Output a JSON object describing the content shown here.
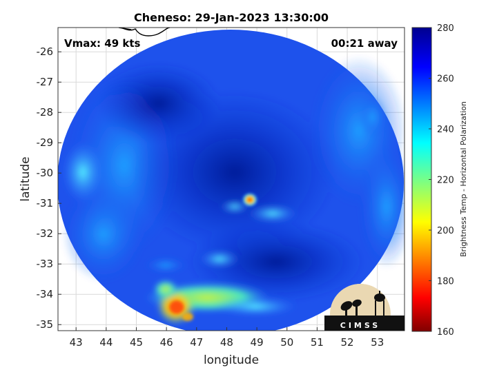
{
  "title": "Cheneso: 29-Jan-2023 13:30:00",
  "vmax_label": "Vmax: 49 kts",
  "time_offset_label": "00:21 away",
  "xlabel": "longitude",
  "ylabel": "latitude",
  "x_ticks": [
    "43",
    "44",
    "45",
    "46",
    "47",
    "48",
    "49",
    "50",
    "51",
    "52",
    "53"
  ],
  "y_ticks": [
    "-26",
    "-27",
    "-28",
    "-29",
    "-30",
    "-31",
    "-32",
    "-33",
    "-34",
    "-35"
  ],
  "colorbar": {
    "label": "Brightness Temp - Horizontal Polarization",
    "ticks": [
      "280",
      "260",
      "240",
      "220",
      "200",
      "180",
      "160"
    ],
    "range": [
      160,
      280
    ],
    "colormap": "jet"
  },
  "logo_text": "CIMSS",
  "map": {
    "lon_range": [
      42.4,
      53.9
    ],
    "lat_range": [
      -35.2,
      -25.2
    ],
    "swath_center": [
      48.3,
      -30.2
    ],
    "background_temp": 263,
    "eye_center": [
      48.75,
      -30.9
    ],
    "eye_temp": 190
  },
  "colors": {
    "background": "#ffffff",
    "grid": "#d9d9d9",
    "coastline": "#000000"
  }
}
